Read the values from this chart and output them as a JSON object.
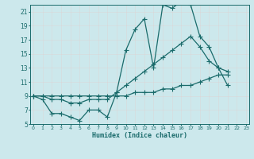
{
  "xlabel": "Humidex (Indice chaleur)",
  "bg_color": "#cce8ec",
  "grid_color": "#ffffff",
  "line_color": "#1a6b6b",
  "line1_x": [
    0,
    1,
    2,
    3,
    4,
    5,
    6,
    7,
    8,
    9,
    10,
    11,
    12,
    13,
    14,
    15,
    16,
    17,
    18,
    19,
    20,
    21,
    22,
    23
  ],
  "line1_y": [
    9.0,
    8.5,
    6.5,
    6.5,
    6.0,
    5.5,
    7.0,
    7.0,
    6.0,
    9.5,
    15.5,
    18.5,
    20.0,
    13.0,
    22.0,
    21.5,
    22.5,
    22.0,
    17.5,
    16.0,
    13.0,
    12.5,
    null,
    null
  ],
  "line2_x": [
    0,
    1,
    2,
    3,
    4,
    5,
    6,
    7,
    8,
    9,
    10,
    11,
    12,
    13,
    14,
    15,
    16,
    17,
    18,
    19,
    20,
    21,
    22,
    23
  ],
  "line2_y": [
    9.0,
    9.0,
    8.5,
    8.5,
    8.0,
    8.0,
    8.5,
    8.5,
    8.5,
    9.5,
    10.5,
    11.5,
    12.5,
    13.5,
    14.5,
    15.5,
    16.5,
    17.5,
    16.0,
    14.0,
    13.0,
    10.5,
    null,
    null
  ],
  "line3_x": [
    0,
    1,
    2,
    3,
    4,
    5,
    6,
    7,
    8,
    9,
    10,
    11,
    12,
    13,
    14,
    15,
    16,
    17,
    18,
    19,
    20,
    21,
    22,
    23
  ],
  "line3_y": [
    9.0,
    9.0,
    9.0,
    9.0,
    9.0,
    9.0,
    9.0,
    9.0,
    9.0,
    9.0,
    9.0,
    9.5,
    9.5,
    9.5,
    10.0,
    10.0,
    10.5,
    10.5,
    11.0,
    11.5,
    12.0,
    12.0,
    null,
    null
  ],
  "xlim": [
    0,
    23
  ],
  "ylim": [
    5,
    22
  ],
  "yticks": [
    5,
    7,
    9,
    11,
    13,
    15,
    17,
    19,
    21
  ],
  "xticks": [
    0,
    1,
    2,
    3,
    4,
    5,
    6,
    7,
    8,
    9,
    10,
    11,
    12,
    13,
    14,
    15,
    16,
    17,
    18,
    19,
    20,
    21,
    22,
    23
  ]
}
